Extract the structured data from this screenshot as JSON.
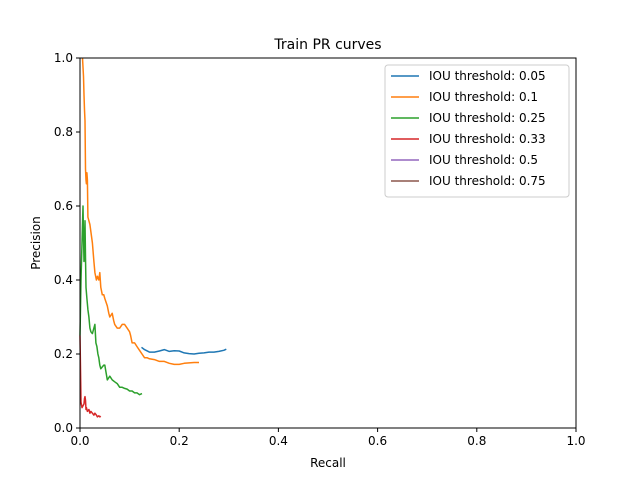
{
  "chart_data": {
    "type": "line",
    "title": "Train PR curves",
    "xlabel": "Recall",
    "ylabel": "Precision",
    "xlim": [
      0,
      1
    ],
    "ylim": [
      0,
      1
    ],
    "x_ticks": [
      "0.0",
      "0.2",
      "0.4",
      "0.6",
      "0.8",
      "1.0"
    ],
    "y_ticks": [
      "0.0",
      "0.2",
      "0.4",
      "0.6",
      "0.8",
      "1.0"
    ],
    "grid": false,
    "legend_position": "top-right",
    "series": [
      {
        "name": "IOU threshold: 0.05",
        "color": "#1f77b4",
        "x": [
          0.124,
          0.13,
          0.14,
          0.15,
          0.16,
          0.17,
          0.18,
          0.19,
          0.2,
          0.21,
          0.22,
          0.23,
          0.24,
          0.25,
          0.26,
          0.27,
          0.28,
          0.29,
          0.295
        ],
        "y": [
          0.218,
          0.212,
          0.205,
          0.205,
          0.208,
          0.212,
          0.207,
          0.209,
          0.208,
          0.203,
          0.201,
          0.2,
          0.202,
          0.203,
          0.205,
          0.205,
          0.207,
          0.21,
          0.213
        ]
      },
      {
        "name": "IOU threshold: 0.1",
        "color": "#ff7f0e",
        "x": [
          0.005,
          0.007,
          0.008,
          0.009,
          0.01,
          0.011,
          0.012,
          0.013,
          0.014,
          0.015,
          0.016,
          0.018,
          0.02,
          0.022,
          0.025,
          0.028,
          0.03,
          0.033,
          0.035,
          0.038,
          0.04,
          0.042,
          0.045,
          0.048,
          0.05,
          0.055,
          0.058,
          0.06,
          0.065,
          0.068,
          0.07,
          0.075,
          0.08,
          0.085,
          0.09,
          0.095,
          0.1,
          0.102,
          0.105,
          0.11,
          0.115,
          0.12,
          0.125,
          0.13,
          0.135,
          0.14,
          0.15,
          0.16,
          0.17,
          0.18,
          0.19,
          0.2,
          0.21,
          0.22,
          0.23,
          0.24
        ],
        "y": [
          1.0,
          0.95,
          0.9,
          0.86,
          0.83,
          0.7,
          0.67,
          0.66,
          0.69,
          0.67,
          0.57,
          0.56,
          0.55,
          0.53,
          0.5,
          0.45,
          0.42,
          0.4,
          0.41,
          0.4,
          0.42,
          0.38,
          0.36,
          0.36,
          0.35,
          0.33,
          0.31,
          0.3,
          0.31,
          0.29,
          0.28,
          0.27,
          0.27,
          0.28,
          0.28,
          0.27,
          0.26,
          0.25,
          0.23,
          0.23,
          0.22,
          0.21,
          0.2,
          0.19,
          0.19,
          0.187,
          0.185,
          0.18,
          0.18,
          0.175,
          0.172,
          0.172,
          0.175,
          0.176,
          0.177,
          0.177
        ]
      },
      {
        "name": "IOU threshold: 0.25",
        "color": "#2ca02c",
        "x": [
          0.0,
          0.002,
          0.004,
          0.005,
          0.006,
          0.007,
          0.008,
          0.009,
          0.01,
          0.011,
          0.012,
          0.014,
          0.016,
          0.018,
          0.02,
          0.022,
          0.025,
          0.028,
          0.03,
          0.032,
          0.034,
          0.036,
          0.038,
          0.04,
          0.042,
          0.045,
          0.048,
          0.05,
          0.055,
          0.06,
          0.065,
          0.07,
          0.075,
          0.08,
          0.085,
          0.09,
          0.095,
          0.1,
          0.105,
          0.11,
          0.115,
          0.12,
          0.125
        ],
        "y": [
          0.25,
          0.4,
          0.5,
          0.55,
          0.6,
          0.52,
          0.45,
          0.48,
          0.56,
          0.46,
          0.38,
          0.35,
          0.32,
          0.3,
          0.27,
          0.26,
          0.255,
          0.27,
          0.28,
          0.23,
          0.22,
          0.2,
          0.19,
          0.17,
          0.16,
          0.165,
          0.17,
          0.17,
          0.13,
          0.14,
          0.13,
          0.125,
          0.12,
          0.11,
          0.11,
          0.107,
          0.105,
          0.1,
          0.1,
          0.095,
          0.095,
          0.09,
          0.093
        ]
      },
      {
        "name": "IOU threshold: 0.33",
        "color": "#d62728",
        "x": [
          0.0,
          0.002,
          0.004,
          0.006,
          0.008,
          0.009,
          0.01,
          0.011,
          0.012,
          0.013,
          0.015,
          0.018,
          0.02,
          0.022,
          0.025,
          0.028,
          0.03,
          0.033,
          0.035,
          0.038,
          0.04,
          0.042
        ],
        "y": [
          0.25,
          0.07,
          0.055,
          0.06,
          0.065,
          0.08,
          0.085,
          0.075,
          0.05,
          0.055,
          0.045,
          0.05,
          0.04,
          0.045,
          0.04,
          0.035,
          0.04,
          0.035,
          0.03,
          0.033,
          0.03,
          0.032
        ]
      },
      {
        "name": "IOU threshold: 0.5",
        "color": "#9467bd",
        "x": [],
        "y": []
      },
      {
        "name": "IOU threshold: 0.75",
        "color": "#8c564b",
        "x": [],
        "y": []
      }
    ]
  }
}
